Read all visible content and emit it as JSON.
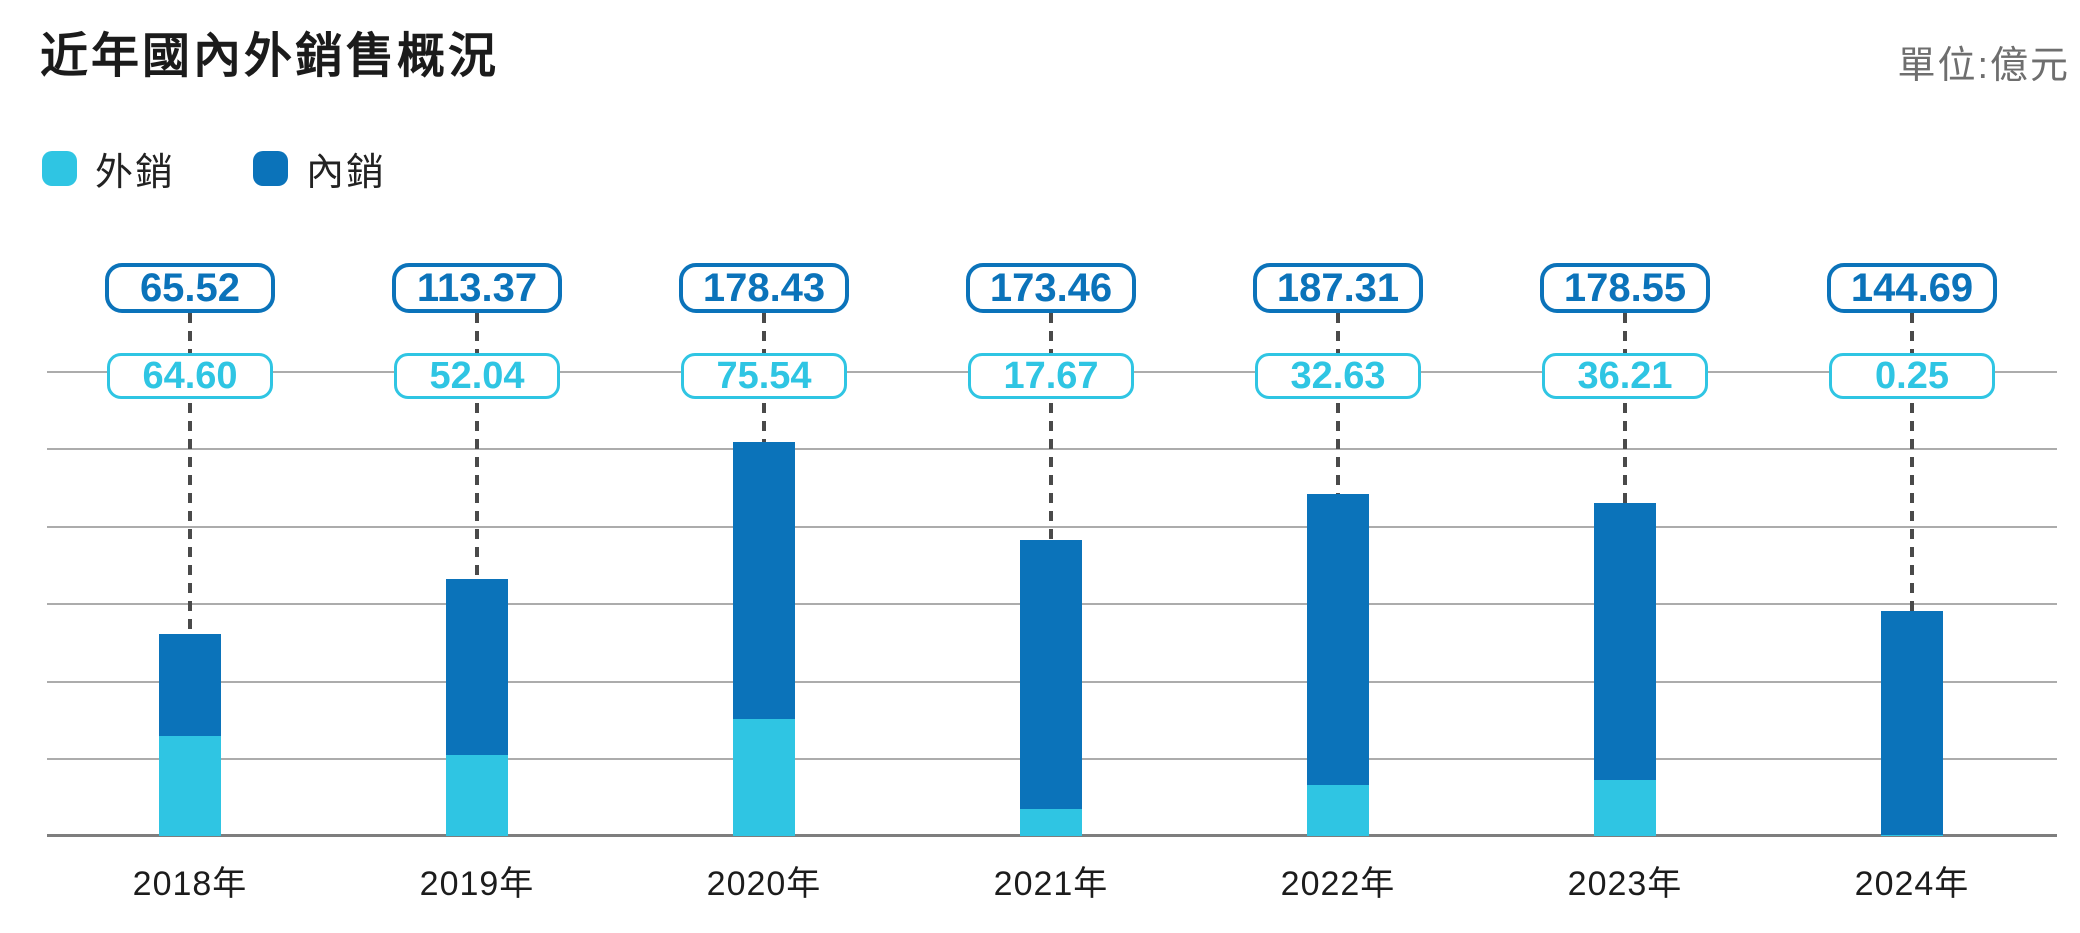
{
  "title": "近年國內外銷售概況",
  "unit_label": "單位:億元",
  "legend": [
    {
      "label": "外銷",
      "color": "#2fc5e3"
    },
    {
      "label": "內銷",
      "color": "#0b73ba"
    }
  ],
  "colors": {
    "export_accent": "#2fc5e3",
    "domestic_accent": "#0b73ba",
    "gridline": "#acacac",
    "axis": "#7e7e7e",
    "dash_line": "#4a4a4a",
    "title_text": "#1b1b1b",
    "unit_text": "#6e6e6e"
  },
  "chart_data": {
    "type": "bar",
    "stacked": true,
    "title": "近年國內外銷售概況",
    "unit": "億元",
    "categories": [
      "2018年",
      "2019年",
      "2020年",
      "2021年",
      "2022年",
      "2023年",
      "2024年"
    ],
    "series": [
      {
        "name": "外銷",
        "color": "#2fc5e3",
        "values": [
          64.6,
          52.04,
          75.54,
          17.67,
          32.63,
          36.21,
          0.25
        ],
        "labels": [
          "64.60",
          "52.04",
          "75.54",
          "17.67",
          "32.63",
          "36.21",
          "0.25"
        ]
      },
      {
        "name": "內銷",
        "color": "#0b73ba",
        "values": [
          65.52,
          113.37,
          178.43,
          173.46,
          187.31,
          178.55,
          144.69
        ],
        "labels": [
          "65.52",
          "113.37",
          "178.43",
          "173.46",
          "187.31",
          "178.55",
          "144.69"
        ]
      }
    ],
    "ylim": [
      0,
      310
    ],
    "gridline_step": 50,
    "grid": "horizontal gridlines every 50 units, no y-axis tick labels",
    "legend_position": "top-left",
    "value_badges": "each column shows 內銷 value in dark-blue outlined pill above 外銷 value in cyan outlined pill, linked to bar top by vertical dashed line"
  }
}
